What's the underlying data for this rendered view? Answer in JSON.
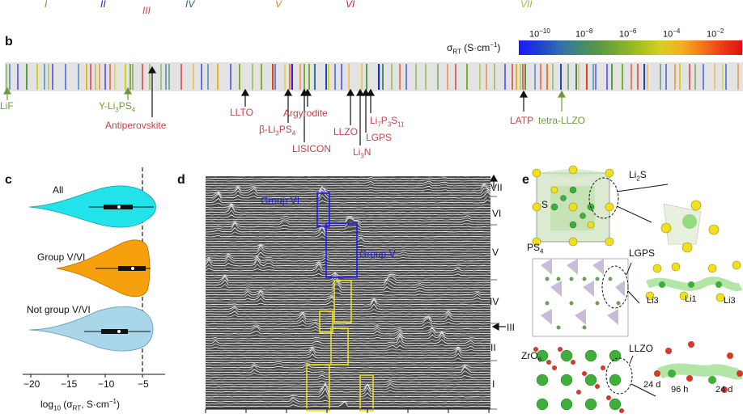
{
  "panel_a": {
    "groups": [
      {
        "label": "I",
        "color": "#6f9a37"
      },
      {
        "label": "II",
        "color": "#1f2fbf"
      },
      {
        "label": "III",
        "color": "#c9404a"
      },
      {
        "label": "IV",
        "color": "#2e6080"
      },
      {
        "label": "V",
        "color": "#e08a2a"
      },
      {
        "label": "VI",
        "color": "#d21f1f"
      },
      {
        "label": "VII",
        "color": "#8fbf4a"
      }
    ]
  },
  "panel_b": {
    "letter": "b",
    "colorbar_label": "σRT (S·cm⁻¹)",
    "colorbar_ticks": [
      "10⁻¹⁰",
      "10⁻⁸",
      "10⁻⁶",
      "10⁻⁴",
      "10⁻²"
    ],
    "colorbar_colors": [
      "#1a1aff",
      "#1f3fd0",
      "#2f6fb0",
      "#3f8a70",
      "#5a9a40",
      "#7fae30",
      "#a8c020",
      "#d8d020",
      "#f2b020",
      "#f27a1a",
      "#ee3b1a",
      "#e01010"
    ],
    "annotations": [
      {
        "text": "LiF",
        "color": "green"
      },
      {
        "text": "Y-Li3PS4",
        "color": "green"
      },
      {
        "text": "Antiperovskite",
        "color": "red"
      },
      {
        "text": "LLTO",
        "color": "red"
      },
      {
        "text": "Argyrodite",
        "color": "red"
      },
      {
        "text": "β-Li3PS4",
        "color": "red"
      },
      {
        "text": "LISICON",
        "color": "red"
      },
      {
        "text": "LLZO",
        "color": "red"
      },
      {
        "text": "Li3N",
        "color": "red"
      },
      {
        "text": "Li7P3S11",
        "color": "red"
      },
      {
        "text": "LGPS",
        "color": "red"
      },
      {
        "text": "LATP",
        "color": "red"
      },
      {
        "text": "tetra-LLZO",
        "color": "green"
      }
    ]
  },
  "panel_c": {
    "letter": "c",
    "xlabel": "log10 (σRT, S·cm⁻¹)",
    "xticks": [
      "−20",
      "−15",
      "−10",
      "−5"
    ],
    "violins": [
      {
        "label": "All",
        "color": "#22e3ea"
      },
      {
        "label": "Group V/VI",
        "color": "#f5a00c"
      },
      {
        "label": "Not group V/VI",
        "color": "#a9d6e8"
      }
    ],
    "dashed_line_at": -4
  },
  "panel_d": {
    "letter": "d",
    "group_labels": [
      "VII",
      "VI",
      "V",
      "IV",
      "III",
      "II",
      "I"
    ],
    "box_labels": [
      {
        "text": "Group VI"
      },
      {
        "text": "Group V"
      }
    ]
  },
  "panel_e": {
    "letter": "e",
    "structures": [
      {
        "name": "Li2S",
        "site_label": "S"
      },
      {
        "name": "LGPS",
        "site_label": "PS4",
        "ion_labels": [
          "Li3",
          "Li1",
          "Li3"
        ]
      },
      {
        "name": "LLZO",
        "site_label": "ZrO6",
        "ion_labels": [
          "24 d",
          "96 h",
          "24 d"
        ]
      }
    ]
  }
}
